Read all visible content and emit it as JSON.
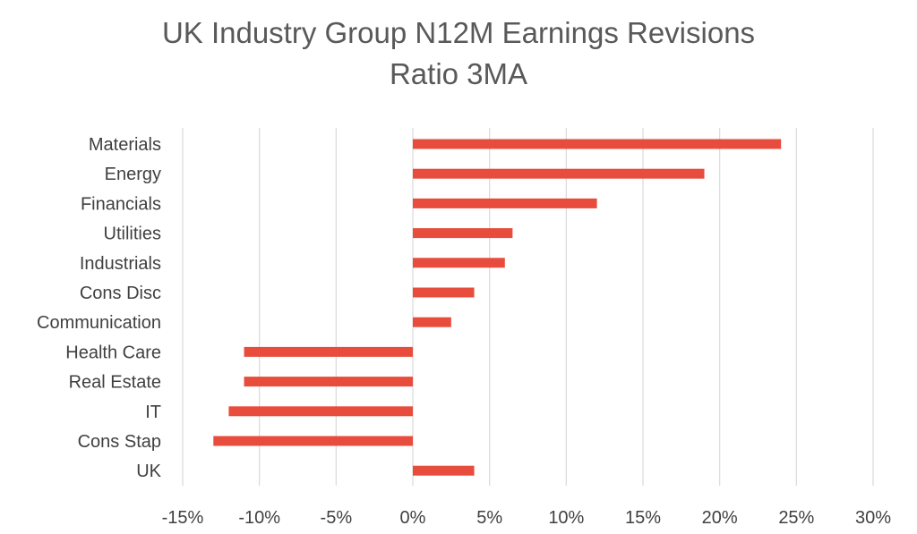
{
  "chart_data": {
    "type": "bar",
    "orientation": "horizontal",
    "title_line1": "UK Industry Group N12M Earnings Revisions",
    "title_line2": "Ratio 3MA",
    "categories": [
      "Materials",
      "Energy",
      "Financials",
      "Utilities",
      "Industrials",
      "Cons Disc",
      "Communication",
      "Health Care",
      "Real Estate",
      "IT",
      "Cons Stap",
      "UK"
    ],
    "values": [
      24,
      19,
      12,
      6.5,
      6,
      4,
      2.5,
      -11,
      -11,
      -12,
      -13,
      4
    ],
    "xlim": [
      -15,
      30
    ],
    "xticks": [
      -15,
      -10,
      -5,
      0,
      5,
      10,
      15,
      20,
      25,
      30
    ],
    "xtick_labels": [
      "-15%",
      "-10%",
      "-5%",
      "0%",
      "5%",
      "10%",
      "15%",
      "20%",
      "25%",
      "30%"
    ],
    "grid": true,
    "legend": "none",
    "colors": {
      "bar": "#e84c3d",
      "grid": "#d9d9d9",
      "text": "#404040",
      "title": "#595959"
    }
  }
}
